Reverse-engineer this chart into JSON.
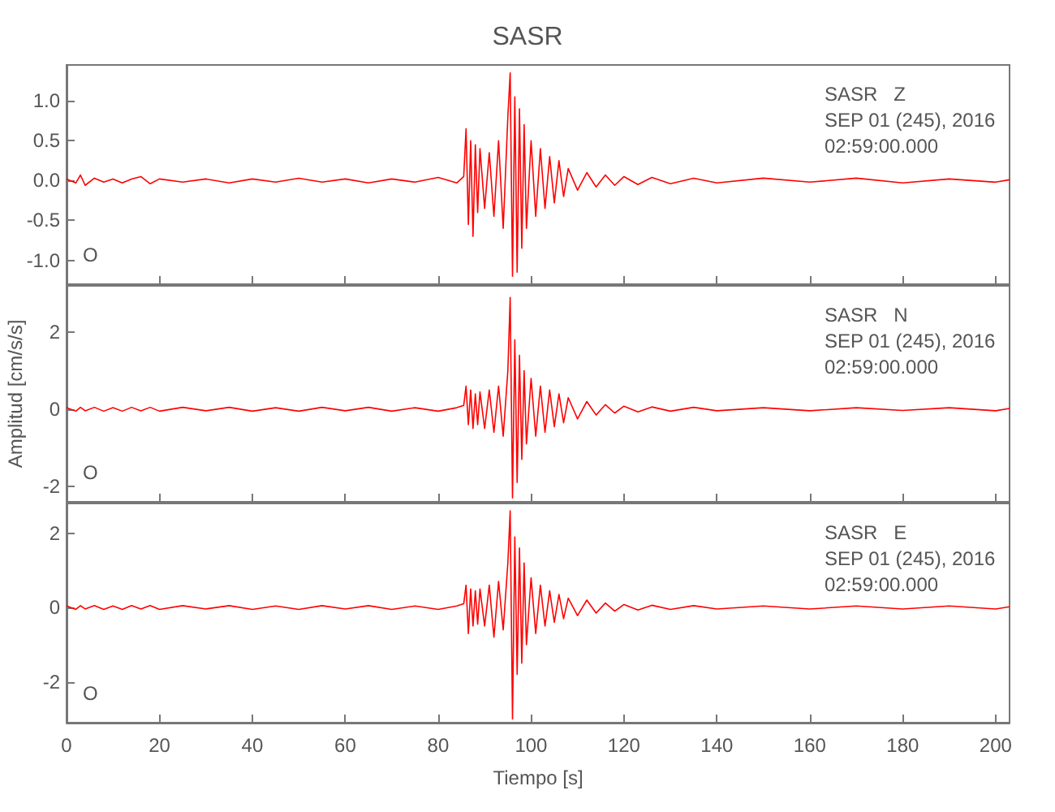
{
  "chart_data": [
    {
      "type": "line",
      "title": "SASR",
      "annotations": [
        "SASR   Z",
        "SEP 01 (245), 2016",
        "02:59:00.000",
        "O"
      ],
      "marker": "none",
      "tick_labels": "y",
      "x": [
        0,
        2,
        3,
        4,
        6,
        8,
        10,
        12,
        14,
        16,
        18,
        20,
        25,
        30,
        35,
        40,
        45,
        50,
        55,
        60,
        65,
        70,
        75,
        80,
        84,
        85.5,
        86,
        86.5,
        87,
        87.5,
        88,
        88.5,
        89,
        90,
        91,
        92,
        93,
        94,
        95,
        95.5,
        96,
        96.5,
        97,
        97.5,
        98,
        98.5,
        99,
        100,
        101,
        102,
        103,
        104,
        105,
        106,
        107,
        108,
        110,
        112,
        114,
        116,
        118,
        120,
        123,
        126,
        130,
        135,
        140,
        150,
        160,
        170,
        180,
        190,
        200,
        203
      ],
      "xlim": [
        0,
        203
      ],
      "xticks": [
        0,
        20,
        40,
        60,
        80,
        100,
        120,
        140,
        160,
        180,
        200
      ],
      "ylim": [
        -1.3,
        1.45
      ],
      "yticks": [
        {
          "value": -1,
          "label": "-1.0"
        },
        {
          "value": -0.5,
          "label": "-0.5"
        },
        {
          "value": 0,
          "label": "0.0"
        },
        {
          "value": 0.5,
          "label": "0.5"
        },
        {
          "value": 1,
          "label": "1.0"
        }
      ],
      "series": [
        {
          "color": "#ff0000",
          "values": [
            0.02,
            -0.03,
            0.07,
            -0.06,
            0.03,
            -0.02,
            0.02,
            -0.03,
            0.02,
            0.05,
            -0.04,
            0.02,
            -0.02,
            0.02,
            -0.03,
            0.02,
            -0.02,
            0.03,
            -0.02,
            0.02,
            -0.03,
            0.02,
            -0.02,
            0.04,
            -0.03,
            0.05,
            0.65,
            -0.55,
            0.5,
            -0.7,
            0.45,
            -0.4,
            0.4,
            -0.35,
            0.35,
            -0.45,
            0.5,
            -0.6,
            0.8,
            1.35,
            -1.2,
            1.05,
            -1.15,
            0.9,
            -0.85,
            0.7,
            -0.6,
            0.5,
            -0.45,
            0.4,
            -0.35,
            0.3,
            -0.28,
            0.25,
            -0.2,
            0.15,
            -0.12,
            0.1,
            -0.08,
            0.07,
            -0.06,
            0.05,
            -0.05,
            0.04,
            -0.04,
            0.03,
            -0.03,
            0.03,
            -0.02,
            0.03,
            -0.03,
            0.02,
            -0.02,
            0.01
          ]
        }
      ]
    },
    {
      "type": "line",
      "ylabel": "Amplitud [cm/s/s]",
      "annotations": [
        "SASR   N",
        "SEP 01 (245), 2016",
        "02:59:00.000",
        "O"
      ],
      "marker": "none",
      "tick_labels": "y",
      "x": [
        0,
        2,
        3,
        4,
        6,
        8,
        10,
        12,
        14,
        16,
        18,
        20,
        25,
        30,
        35,
        40,
        45,
        50,
        55,
        60,
        65,
        70,
        75,
        80,
        84,
        85.5,
        86,
        86.5,
        87,
        87.5,
        88,
        88.5,
        89,
        90,
        91,
        92,
        93,
        94,
        95,
        95.5,
        96,
        96.5,
        97,
        97.5,
        98,
        98.5,
        99,
        100,
        101,
        102,
        103,
        104,
        105,
        106,
        107,
        108,
        110,
        112,
        114,
        116,
        118,
        120,
        123,
        126,
        130,
        135,
        140,
        150,
        160,
        170,
        180,
        190,
        200,
        203
      ],
      "xlim": [
        0,
        203
      ],
      "xticks": [
        0,
        20,
        40,
        60,
        80,
        100,
        120,
        140,
        160,
        180,
        200
      ],
      "ylim": [
        -2.4,
        3.2
      ],
      "yticks": [
        -2,
        0,
        2
      ],
      "series": [
        {
          "color": "#ff0000",
          "values": [
            0.04,
            -0.05,
            0.05,
            -0.04,
            0.05,
            -0.05,
            0.04,
            -0.05,
            0.05,
            -0.04,
            0.05,
            -0.05,
            0.05,
            -0.04,
            0.05,
            -0.05,
            0.04,
            -0.05,
            0.05,
            -0.04,
            0.05,
            -0.05,
            0.04,
            -0.05,
            0.04,
            0.1,
            0.6,
            -0.4,
            0.5,
            -0.5,
            0.4,
            -0.4,
            0.45,
            -0.5,
            0.5,
            -0.6,
            0.6,
            -0.7,
            1.0,
            2.9,
            -2.3,
            1.8,
            -1.9,
            1.4,
            -1.3,
            1.0,
            -0.9,
            0.8,
            -0.7,
            0.6,
            -0.6,
            0.5,
            -0.45,
            0.4,
            -0.35,
            0.3,
            -0.25,
            0.2,
            -0.15,
            0.12,
            -0.1,
            0.08,
            -0.07,
            0.06,
            -0.05,
            0.05,
            -0.04,
            0.04,
            -0.04,
            0.04,
            -0.03,
            0.04,
            -0.04,
            0.02
          ]
        }
      ]
    },
    {
      "type": "line",
      "xlabel": "Tiempo [s]",
      "annotations": [
        "SASR   E",
        "SEP 01 (245), 2016",
        "02:59:00.000",
        "O"
      ],
      "marker": "none",
      "x": [
        0,
        2,
        3,
        4,
        6,
        8,
        10,
        12,
        14,
        16,
        18,
        20,
        25,
        30,
        35,
        40,
        45,
        50,
        55,
        60,
        65,
        70,
        75,
        80,
        84,
        85.5,
        86,
        86.5,
        87,
        87.5,
        88,
        88.5,
        89,
        90,
        91,
        92,
        93,
        94,
        95,
        95.5,
        96,
        96.5,
        97,
        97.5,
        98,
        98.5,
        99,
        100,
        101,
        102,
        103,
        104,
        105,
        106,
        107,
        108,
        110,
        112,
        114,
        116,
        118,
        120,
        123,
        126,
        130,
        135,
        140,
        150,
        160,
        170,
        180,
        190,
        200,
        203
      ],
      "xlim": [
        0,
        203
      ],
      "xticks": [
        0,
        20,
        40,
        60,
        80,
        100,
        120,
        140,
        160,
        180,
        200
      ],
      "ylim": [
        -3.1,
        2.8
      ],
      "yticks": [
        -2,
        0,
        2
      ],
      "series": [
        {
          "color": "#ff0000",
          "values": [
            0.04,
            -0.05,
            0.05,
            -0.04,
            0.05,
            -0.05,
            0.04,
            -0.05,
            0.05,
            -0.04,
            0.05,
            -0.05,
            0.05,
            -0.04,
            0.05,
            -0.05,
            0.04,
            -0.05,
            0.05,
            -0.04,
            0.05,
            -0.05,
            0.04,
            -0.05,
            0.04,
            0.1,
            0.6,
            -0.7,
            0.5,
            -0.5,
            0.45,
            -0.45,
            0.5,
            -0.5,
            0.6,
            -0.8,
            0.7,
            -0.6,
            1.2,
            2.6,
            -3.0,
            1.9,
            -1.8,
            1.6,
            -1.5,
            1.2,
            -1.0,
            0.8,
            -0.7,
            0.6,
            -0.5,
            0.45,
            -0.4,
            0.35,
            -0.3,
            0.25,
            -0.22,
            0.2,
            -0.15,
            0.12,
            -0.1,
            0.08,
            -0.07,
            0.06,
            -0.05,
            0.05,
            -0.04,
            0.04,
            -0.04,
            0.04,
            -0.04,
            0.04,
            -0.04,
            0.02
          ]
        }
      ]
    }
  ]
}
